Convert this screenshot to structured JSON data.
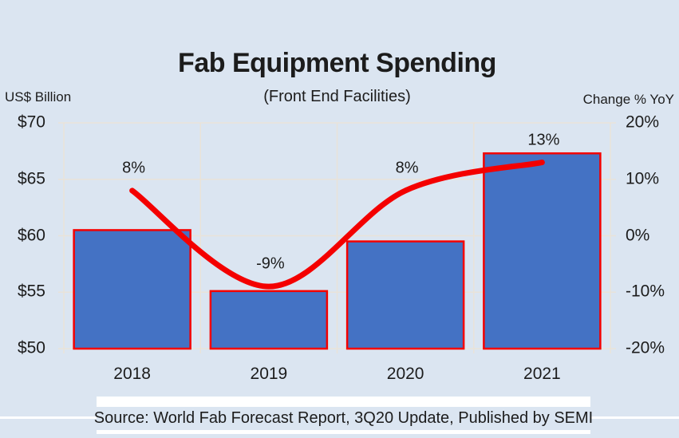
{
  "title": "Fab Equipment Spending",
  "subtitle": "(Front End Facilities)",
  "source": {
    "text": "Source: World Fab Forecast Report, 3Q20 Update, Published by SEMI"
  },
  "colors": {
    "background": "#dbe5f1",
    "bar_fill": "#4472c4",
    "bar_border": "#f40000",
    "line_red": "#f40000",
    "gridline": "#e9e3d9",
    "text": "#1c1c1c",
    "source_box": "#ffffff"
  },
  "chart_data": {
    "type": "combo-bar-line",
    "title": "Fab Equipment Spending",
    "subtitle": "(Front End Facilities)",
    "categories": [
      "2018",
      "2019",
      "2020",
      "2021"
    ],
    "series": [
      {
        "name": "Fab Equipment Spending",
        "type": "bar",
        "axis": "left",
        "values": [
          60.5,
          55.1,
          59.5,
          67.3
        ],
        "fill": "#4472c4",
        "border": "#f40000"
      },
      {
        "name": "Change % YoY",
        "type": "line",
        "axis": "right",
        "values": [
          8,
          -9,
          8,
          13
        ],
        "point_labels": [
          "8%",
          "-9%",
          "8%",
          "13%"
        ],
        "color": "#f40000",
        "smooth": true
      }
    ],
    "left_axis": {
      "title": "US$ Billion",
      "min": 50,
      "max": 70,
      "tick_values": [
        70,
        65,
        60,
        55,
        50
      ],
      "tick_labels": [
        "$70",
        "$65",
        "$60",
        "$55",
        "$50"
      ]
    },
    "right_axis": {
      "title": "Change % YoY",
      "min": -20,
      "max": 20,
      "tick_values": [
        20,
        10,
        0,
        -10,
        -20
      ],
      "tick_labels": [
        "20%",
        "10%",
        "0%",
        "-10%",
        "-20%"
      ]
    },
    "grid": true,
    "legend": "none"
  }
}
